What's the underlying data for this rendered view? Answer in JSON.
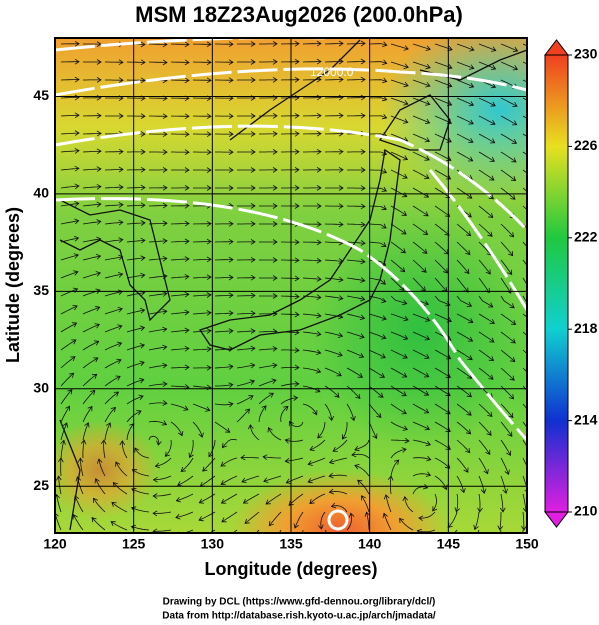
{
  "chart_data": {
    "type": "contour",
    "title": "MSM 18Z23Aug2026 (200.0hPa)",
    "xlabel": "Longitude (degrees)",
    "ylabel": "Latitude  (degrees)",
    "xlim": [
      120,
      150
    ],
    "ylim": [
      22.6,
      48
    ],
    "xticks": [
      120,
      125,
      130,
      135,
      140,
      145,
      150
    ],
    "yticks": [
      25,
      30,
      35,
      40,
      45
    ],
    "contour_label": "12000.0",
    "colorbar": {
      "lim": [
        210,
        230
      ],
      "ticks": [
        210,
        214,
        218,
        222,
        226,
        230
      ]
    },
    "footer": [
      "Drawing by DCL (https://www.gfd-dennou.org/library/dcl/)",
      "Data from http://database.rish.kyoto-u.ac.jp/arch/jmadata/"
    ]
  }
}
